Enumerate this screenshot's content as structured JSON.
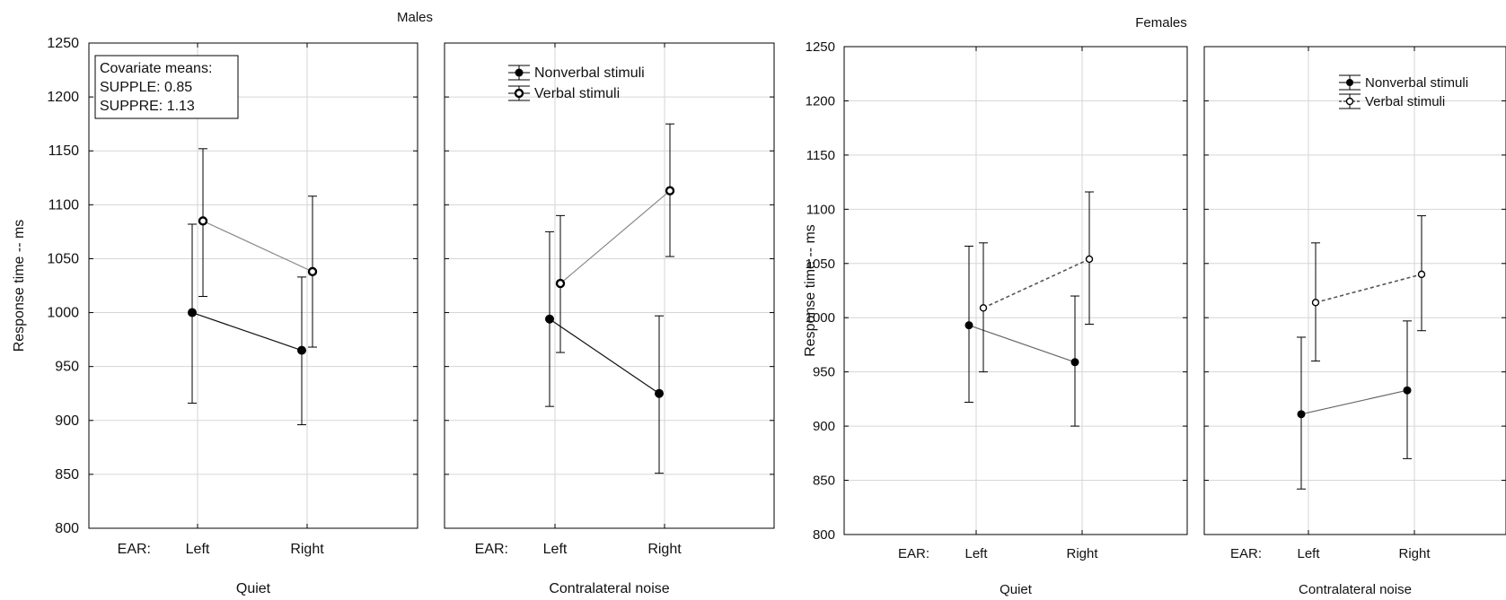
{
  "chart_data": [
    {
      "type": "line",
      "title": "Males",
      "ylabel": "Response time -- ms",
      "ylim": [
        800,
        1250
      ],
      "yticks": [
        800,
        850,
        900,
        950,
        1000,
        1050,
        1100,
        1150,
        1200,
        1250
      ],
      "x_axis_prefix": "EAR:",
      "categories": [
        "Left",
        "Right"
      ],
      "annotation": [
        "Covariate means:",
        "SUPPLE: 0.85",
        "SUPPRE: 1.13"
      ],
      "legend_panel": 1,
      "legend_position": "top-center",
      "panels": [
        {
          "label": "Quiet",
          "series": [
            {
              "name": "Nonverbal stimuli",
              "values": [
                1000,
                965
              ],
              "lower": [
                916,
                896
              ],
              "upper": [
                1082,
                1033
              ]
            },
            {
              "name": "Verbal stimuli",
              "values": [
                1085,
                1038
              ],
              "lower": [
                1015,
                968
              ],
              "upper": [
                1152,
                1108
              ]
            }
          ]
        },
        {
          "label": "Contralateral noise",
          "series": [
            {
              "name": "Nonverbal stimuli",
              "values": [
                994,
                925
              ],
              "lower": [
                913,
                851
              ],
              "upper": [
                1075,
                997
              ]
            },
            {
              "name": "Verbal stimuli",
              "values": [
                1027,
                1113
              ],
              "lower": [
                963,
                1052
              ],
              "upper": [
                1090,
                1175
              ]
            }
          ]
        }
      ]
    },
    {
      "type": "line",
      "title": "Females",
      "ylabel": "Response time -- ms",
      "ylim": [
        800,
        1250
      ],
      "yticks": [
        800,
        850,
        900,
        950,
        1000,
        1050,
        1100,
        1150,
        1200,
        1250
      ],
      "x_axis_prefix": "EAR:",
      "categories": [
        "Left",
        "Right"
      ],
      "legend_panel": 1,
      "legend_position": "top-right",
      "panels": [
        {
          "label": "Quiet",
          "series": [
            {
              "name": "Nonverbal stimuli",
              "values": [
                993,
                959
              ],
              "lower": [
                922,
                900
              ],
              "upper": [
                1066,
                1020
              ]
            },
            {
              "name": "Verbal stimuli",
              "values": [
                1009,
                1054
              ],
              "lower": [
                950,
                994
              ],
              "upper": [
                1069,
                1116
              ]
            }
          ]
        },
        {
          "label": "Contralateral noise",
          "series": [
            {
              "name": "Nonverbal stimuli",
              "values": [
                911,
                933
              ],
              "lower": [
                842,
                870
              ],
              "upper": [
                982,
                997
              ]
            },
            {
              "name": "Verbal stimuli",
              "values": [
                1014,
                1040
              ],
              "lower": [
                960,
                988
              ],
              "upper": [
                1069,
                1094
              ]
            }
          ]
        }
      ]
    }
  ]
}
